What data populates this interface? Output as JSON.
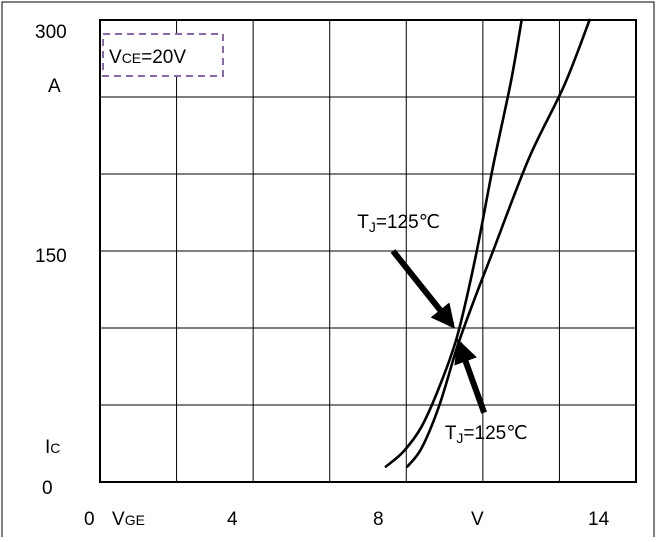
{
  "chart_data": {
    "type": "line",
    "title": "",
    "xlabel": "VGE",
    "xlabel_main": "V",
    "xlabel_sub": "GE",
    "x_unit": "V",
    "ylabel": "Ic",
    "ylabel_main": "I",
    "ylabel_sub": "C",
    "y_unit": "A",
    "xlim": [
      0,
      15
    ],
    "ylim": [
      0,
      300
    ],
    "x_tick_labels": [
      {
        "value": 0,
        "label": "0"
      },
      {
        "value": 4,
        "label": "4"
      },
      {
        "value": 8,
        "label": "8"
      },
      {
        "value": 14,
        "label": "14"
      }
    ],
    "y_tick_labels": [
      {
        "value": 0,
        "label": "0"
      },
      {
        "value": 150,
        "label": "150"
      },
      {
        "value": 300,
        "label": "300"
      }
    ],
    "grid": true,
    "condition": {
      "main": "V",
      "sub": "CE",
      "rest": "=20V",
      "text": "VCE=20V"
    },
    "series": [
      {
        "name": "",
        "color": "#000000",
        "points": [
          [
            8.0,
            10
          ],
          [
            8.5,
            20
          ],
          [
            9.0,
            36
          ],
          [
            9.5,
            62
          ],
          [
            10.0,
            95
          ],
          [
            10.5,
            145
          ],
          [
            11.0,
            205
          ],
          [
            11.5,
            260
          ],
          [
            11.8,
            300
          ]
        ]
      },
      {
        "name": "",
        "color": "#000000",
        "points": [
          [
            8.6,
            10
          ],
          [
            9.0,
            22
          ],
          [
            9.5,
            50
          ],
          [
            10.0,
            88
          ],
          [
            10.5,
            120
          ],
          [
            11.0,
            150
          ],
          [
            12.0,
            210
          ],
          [
            13.0,
            258
          ],
          [
            13.7,
            300
          ]
        ]
      }
    ],
    "annotations": [
      {
        "main": "T",
        "sub": "J",
        "rest": "=125℃",
        "text": "TJ=125℃",
        "label_at": [
          7.2,
          165
        ],
        "arrow_from": [
          8.2,
          150
        ],
        "arrow_to": [
          9.85,
          102
        ]
      },
      {
        "main": "T",
        "sub": "J",
        "rest": "=125℃",
        "text": "TJ=125℃",
        "label_at": [
          9.65,
          28
        ],
        "arrow_from": [
          10.75,
          45
        ],
        "arrow_to": [
          10.05,
          90
        ]
      }
    ]
  }
}
